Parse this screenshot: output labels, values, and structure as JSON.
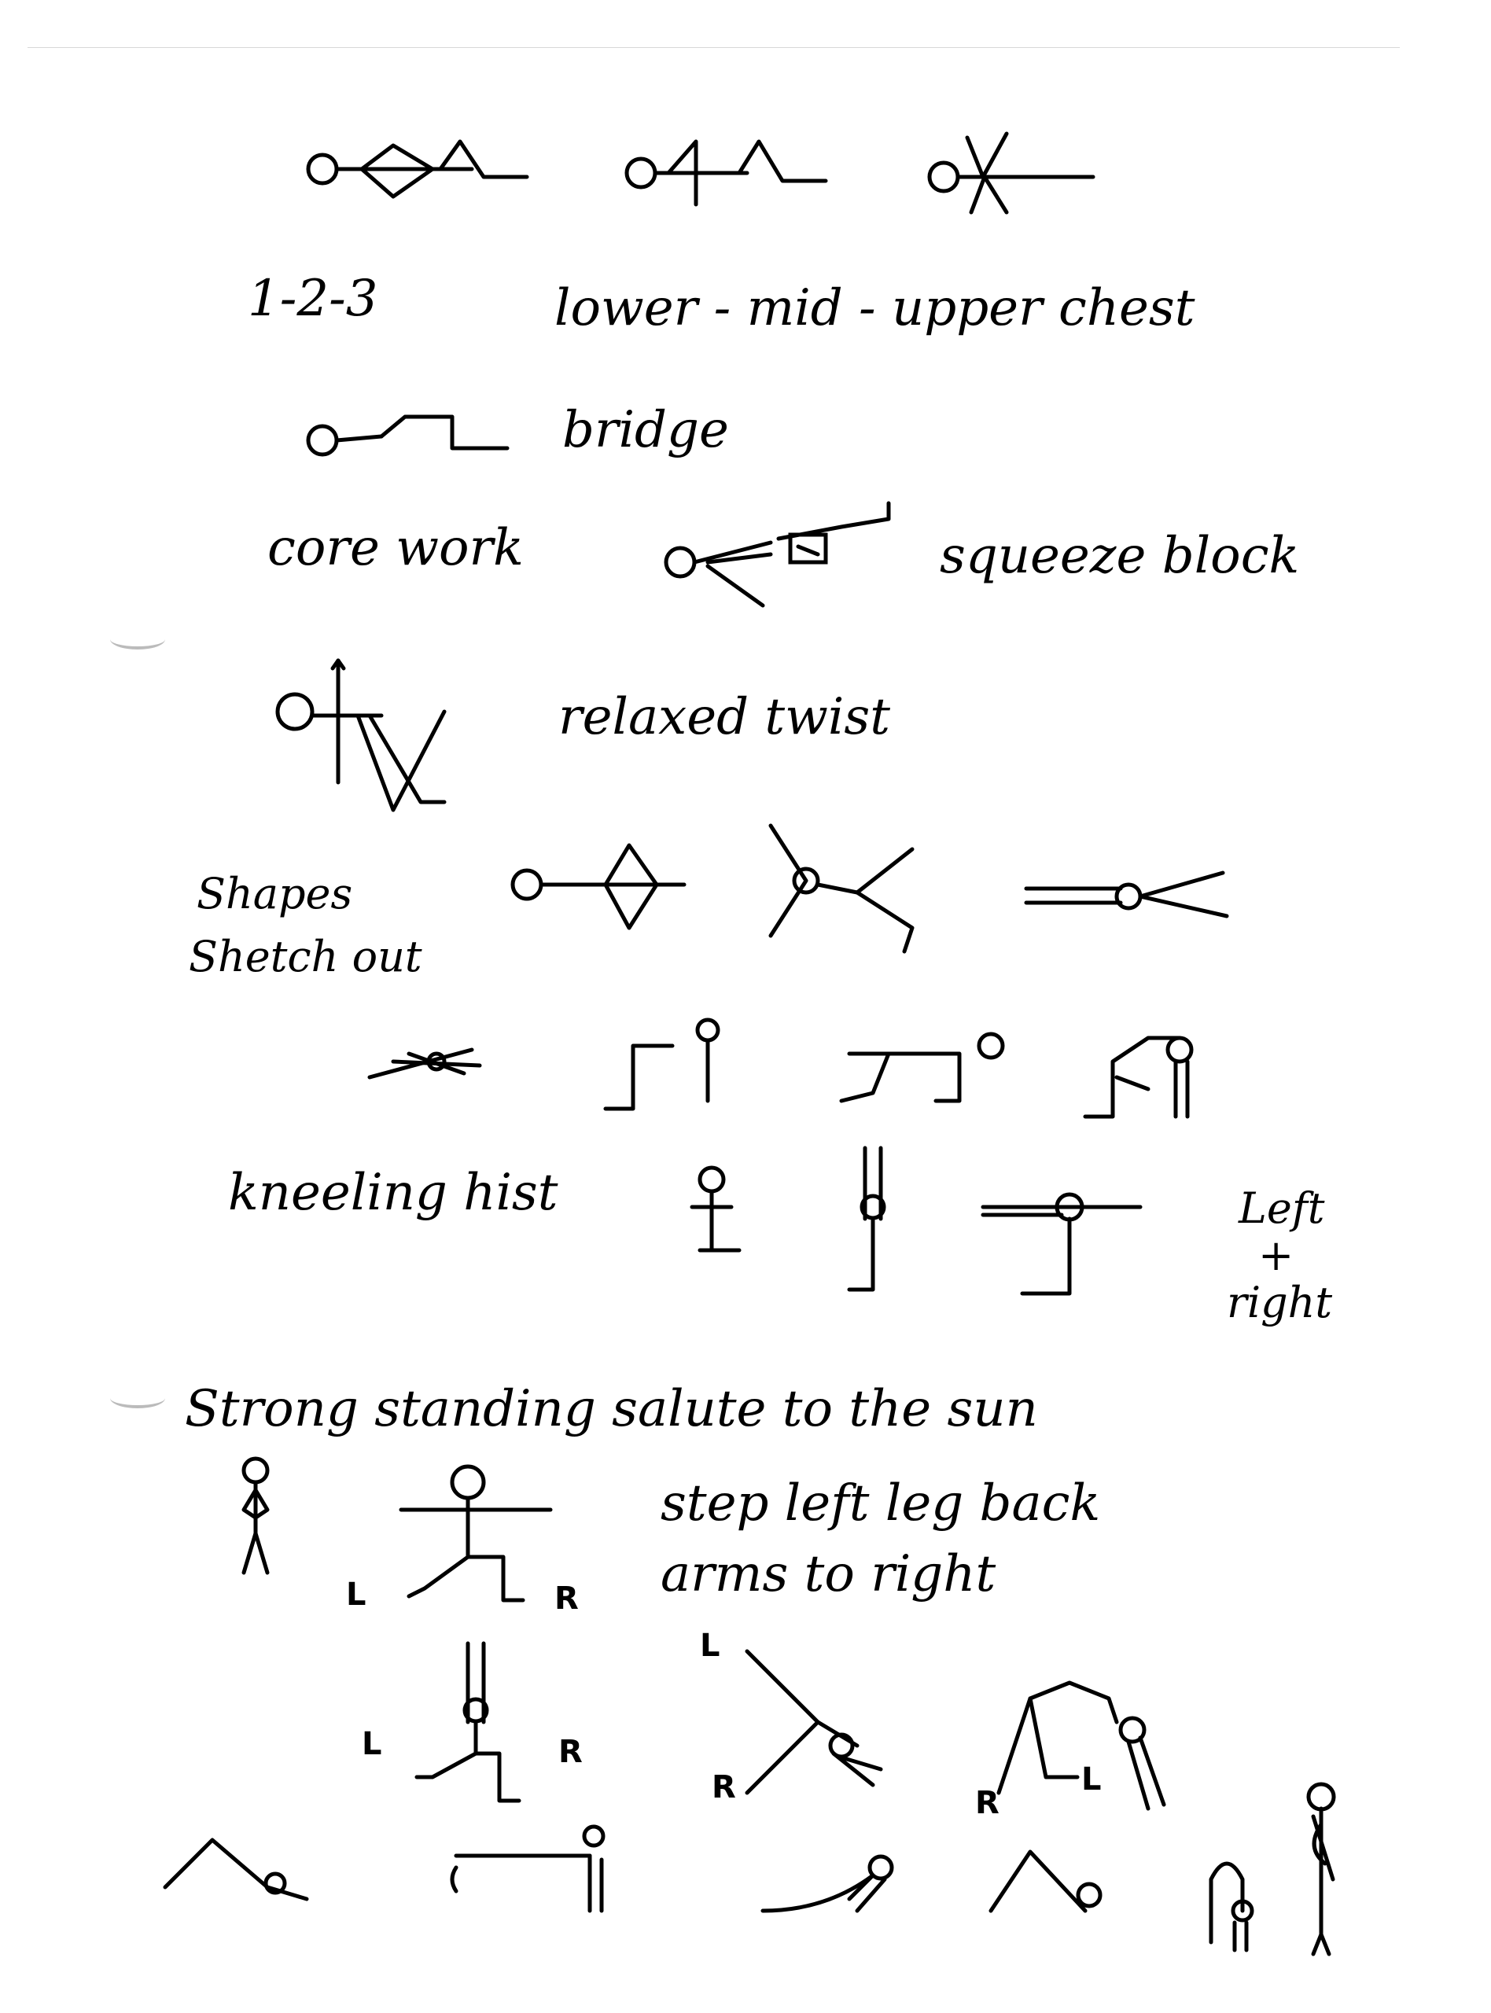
{
  "notes": {
    "n123": "1-2-3",
    "chest_levels": "lower - mid - upper chest",
    "bridge": "bridge",
    "core_work": "core work",
    "squeeze_block": "squeeze block",
    "relaxed_twist": "relaxed twist",
    "shapes": "Shapes",
    "stretch_out": "Shetch out",
    "kneeling_twist": "kneeling hist",
    "left": "Left",
    "plus": "+",
    "right": "right",
    "salute_title": "Strong standing salute to the sun",
    "step_left": "step left leg back",
    "arms_right": "arms to right",
    "label_L": "L",
    "label_R": "R"
  }
}
